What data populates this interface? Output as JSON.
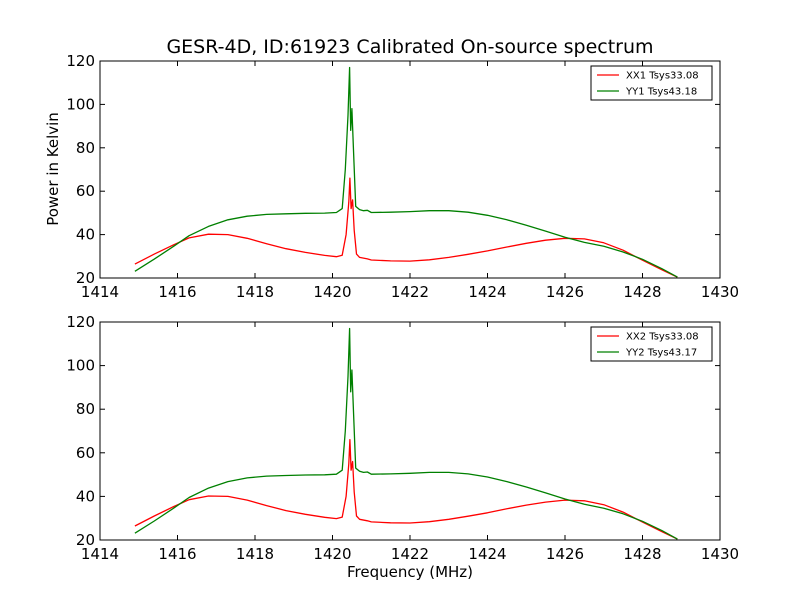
{
  "figure": {
    "title": "GESR-4D, ID:61923 Calibrated On-source spectrum",
    "xlabel": "Frequency (MHz)",
    "ylabel": "Power in Kelvin"
  },
  "chart_data": [
    {
      "type": "line",
      "xlim": [
        1414,
        1430
      ],
      "ylim": [
        20,
        120
      ],
      "xticks": [
        "1414",
        "1416",
        "1418",
        "1420",
        "1422",
        "1424",
        "1426",
        "1428",
        "1430"
      ],
      "yticks": [
        "20",
        "40",
        "60",
        "80",
        "100",
        "120"
      ],
      "xlabel": "",
      "ylabel": "Power in Kelvin",
      "grid": false,
      "legend": "top-right",
      "series": [
        {
          "name": "XX1 Tsys33.08",
          "color": "#ff0000",
          "points": [
            [
              1414.9,
              26.4
            ],
            [
              1415.4,
              31.0
            ],
            [
              1415.9,
              35.3
            ],
            [
              1416.3,
              38.5
            ],
            [
              1416.8,
              40.2
            ],
            [
              1417.3,
              40.0
            ],
            [
              1417.8,
              38.3
            ],
            [
              1418.3,
              35.8
            ],
            [
              1418.8,
              33.5
            ],
            [
              1419.3,
              31.8
            ],
            [
              1419.8,
              30.4
            ],
            [
              1420.1,
              29.8
            ],
            [
              1420.25,
              30.5
            ],
            [
              1420.35,
              40
            ],
            [
              1420.42,
              55
            ],
            [
              1420.45,
              66
            ],
            [
              1420.48,
              52
            ],
            [
              1420.52,
              56
            ],
            [
              1420.56,
              42
            ],
            [
              1420.62,
              31
            ],
            [
              1420.7,
              29.5
            ],
            [
              1420.9,
              28.8
            ],
            [
              1421.0,
              28.3
            ],
            [
              1421.5,
              27.9
            ],
            [
              1422.0,
              27.8
            ],
            [
              1422.5,
              28.4
            ],
            [
              1423.0,
              29.5
            ],
            [
              1423.5,
              30.9
            ],
            [
              1424.0,
              32.5
            ],
            [
              1424.5,
              34.3
            ],
            [
              1425.0,
              36.0
            ],
            [
              1425.5,
              37.4
            ],
            [
              1426.0,
              38.3
            ],
            [
              1426.5,
              38.0
            ],
            [
              1427.0,
              36.2
            ],
            [
              1427.5,
              32.8
            ],
            [
              1428.0,
              28.2
            ],
            [
              1428.5,
              23.8
            ],
            [
              1428.9,
              20.4
            ]
          ]
        },
        {
          "name": "YY1 Tsys43.18",
          "color": "#008000",
          "points": [
            [
              1414.9,
              23.1
            ],
            [
              1415.4,
              28.7
            ],
            [
              1415.9,
              34.6
            ],
            [
              1416.3,
              39.5
            ],
            [
              1416.8,
              43.8
            ],
            [
              1417.3,
              46.8
            ],
            [
              1417.8,
              48.5
            ],
            [
              1418.3,
              49.3
            ],
            [
              1418.8,
              49.6
            ],
            [
              1419.3,
              49.8
            ],
            [
              1419.8,
              49.9
            ],
            [
              1420.1,
              50.2
            ],
            [
              1420.25,
              52
            ],
            [
              1420.33,
              70
            ],
            [
              1420.4,
              95
            ],
            [
              1420.44,
              117
            ],
            [
              1420.47,
              88
            ],
            [
              1420.5,
              98
            ],
            [
              1420.54,
              80
            ],
            [
              1420.6,
              53
            ],
            [
              1420.7,
              51.5
            ],
            [
              1420.8,
              51
            ],
            [
              1420.9,
              51.2
            ],
            [
              1421.0,
              50.2
            ],
            [
              1421.5,
              50.3
            ],
            [
              1422.0,
              50.6
            ],
            [
              1422.5,
              51.0
            ],
            [
              1423.0,
              51.0
            ],
            [
              1423.5,
              50.3
            ],
            [
              1424.0,
              48.9
            ],
            [
              1424.5,
              46.8
            ],
            [
              1425.0,
              44.3
            ],
            [
              1425.5,
              41.6
            ],
            [
              1426.0,
              38.8
            ],
            [
              1426.5,
              36.4
            ],
            [
              1427.0,
              34.6
            ],
            [
              1427.5,
              32.0
            ],
            [
              1428.0,
              28.6
            ],
            [
              1428.5,
              24.3
            ],
            [
              1428.9,
              20.4
            ]
          ]
        }
      ]
    },
    {
      "type": "line",
      "xlim": [
        1414,
        1430
      ],
      "ylim": [
        20,
        120
      ],
      "xticks": [
        "1414",
        "1416",
        "1418",
        "1420",
        "1422",
        "1424",
        "1426",
        "1428",
        "1430"
      ],
      "yticks": [
        "20",
        "40",
        "60",
        "80",
        "100",
        "120"
      ],
      "xlabel": "Frequency (MHz)",
      "ylabel": "",
      "grid": false,
      "legend": "top-right",
      "series": [
        {
          "name": "XX2 Tsys33.08",
          "color": "#ff0000",
          "points": [
            [
              1414.9,
              26.4
            ],
            [
              1415.4,
              31.0
            ],
            [
              1415.9,
              35.3
            ],
            [
              1416.3,
              38.5
            ],
            [
              1416.8,
              40.2
            ],
            [
              1417.3,
              40.0
            ],
            [
              1417.8,
              38.3
            ],
            [
              1418.3,
              35.8
            ],
            [
              1418.8,
              33.5
            ],
            [
              1419.3,
              31.8
            ],
            [
              1419.8,
              30.4
            ],
            [
              1420.1,
              29.8
            ],
            [
              1420.25,
              30.5
            ],
            [
              1420.35,
              40
            ],
            [
              1420.42,
              55
            ],
            [
              1420.45,
              66
            ],
            [
              1420.48,
              52
            ],
            [
              1420.52,
              56
            ],
            [
              1420.56,
              42
            ],
            [
              1420.62,
              31
            ],
            [
              1420.7,
              29.5
            ],
            [
              1420.9,
              28.8
            ],
            [
              1421.0,
              28.3
            ],
            [
              1421.5,
              27.9
            ],
            [
              1422.0,
              27.8
            ],
            [
              1422.5,
              28.4
            ],
            [
              1423.0,
              29.5
            ],
            [
              1423.5,
              30.9
            ],
            [
              1424.0,
              32.5
            ],
            [
              1424.5,
              34.3
            ],
            [
              1425.0,
              36.0
            ],
            [
              1425.5,
              37.4
            ],
            [
              1426.0,
              38.3
            ],
            [
              1426.5,
              38.0
            ],
            [
              1427.0,
              36.2
            ],
            [
              1427.5,
              32.8
            ],
            [
              1428.0,
              28.2
            ],
            [
              1428.5,
              23.8
            ],
            [
              1428.9,
              20.4
            ]
          ]
        },
        {
          "name": "YY2 Tsys43.17",
          "color": "#008000",
          "points": [
            [
              1414.9,
              23.1
            ],
            [
              1415.4,
              28.7
            ],
            [
              1415.9,
              34.6
            ],
            [
              1416.3,
              39.5
            ],
            [
              1416.8,
              43.8
            ],
            [
              1417.3,
              46.8
            ],
            [
              1417.8,
              48.5
            ],
            [
              1418.3,
              49.3
            ],
            [
              1418.8,
              49.6
            ],
            [
              1419.3,
              49.8
            ],
            [
              1419.8,
              49.9
            ],
            [
              1420.1,
              50.2
            ],
            [
              1420.25,
              52
            ],
            [
              1420.33,
              70
            ],
            [
              1420.4,
              95
            ],
            [
              1420.44,
              117
            ],
            [
              1420.47,
              88
            ],
            [
              1420.5,
              98
            ],
            [
              1420.54,
              80
            ],
            [
              1420.6,
              53
            ],
            [
              1420.7,
              51.5
            ],
            [
              1420.8,
              51
            ],
            [
              1420.9,
              51.2
            ],
            [
              1421.0,
              50.2
            ],
            [
              1421.5,
              50.3
            ],
            [
              1422.0,
              50.6
            ],
            [
              1422.5,
              51.0
            ],
            [
              1423.0,
              51.0
            ],
            [
              1423.5,
              50.3
            ],
            [
              1424.0,
              48.9
            ],
            [
              1424.5,
              46.8
            ],
            [
              1425.0,
              44.3
            ],
            [
              1425.5,
              41.6
            ],
            [
              1426.0,
              38.8
            ],
            [
              1426.5,
              36.4
            ],
            [
              1427.0,
              34.6
            ],
            [
              1427.5,
              32.0
            ],
            [
              1428.0,
              28.6
            ],
            [
              1428.5,
              24.3
            ],
            [
              1428.9,
              20.4
            ]
          ]
        }
      ]
    }
  ]
}
